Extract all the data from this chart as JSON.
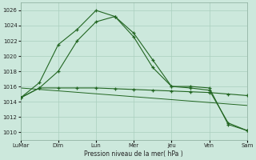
{
  "title": "Pression niveau de la mer( hPa )",
  "bg_color": "#cce8dc",
  "grid_color": "#aacfbf",
  "line_color": "#226622",
  "ylim": [
    1009,
    1027
  ],
  "yticks": [
    1010,
    1012,
    1014,
    1016,
    1018,
    1020,
    1022,
    1024,
    1026
  ],
  "day_labels": [
    "LuMar",
    "Dim",
    "Lun",
    "Mer",
    "Jeu",
    "Ven",
    "Sam"
  ],
  "day_positions": [
    0,
    2,
    4,
    6,
    8,
    10,
    12
  ],
  "line1_x": [
    0,
    1,
    2,
    3,
    4,
    5,
    6,
    7,
    8,
    9,
    10,
    11,
    12
  ],
  "line1_y": [
    1014.5,
    1015.8,
    1015.8,
    1015.8,
    1015.8,
    1015.7,
    1015.6,
    1015.5,
    1015.4,
    1015.3,
    1015.2,
    1015.0,
    1014.8
  ],
  "line2_x": [
    0,
    1,
    2,
    3,
    4,
    5,
    6,
    7,
    8,
    9,
    10,
    11,
    12
  ],
  "line2_y": [
    1014.5,
    1016.5,
    1021.5,
    1023.5,
    1026.0,
    1025.2,
    1022.5,
    1018.5,
    1016.0,
    1016.0,
    1015.8,
    1011.0,
    1010.2
  ],
  "line3_x": [
    0,
    1,
    2,
    3,
    4,
    5,
    6,
    7,
    8,
    9,
    10,
    11,
    12
  ],
  "line3_y": [
    1014.5,
    1015.8,
    1018.0,
    1022.0,
    1024.5,
    1025.2,
    1023.0,
    1019.5,
    1016.0,
    1015.8,
    1015.5,
    1011.2,
    1010.2
  ],
  "ref_line_x": [
    0,
    12
  ],
  "ref_line_y": [
    1015.8,
    1013.5
  ]
}
